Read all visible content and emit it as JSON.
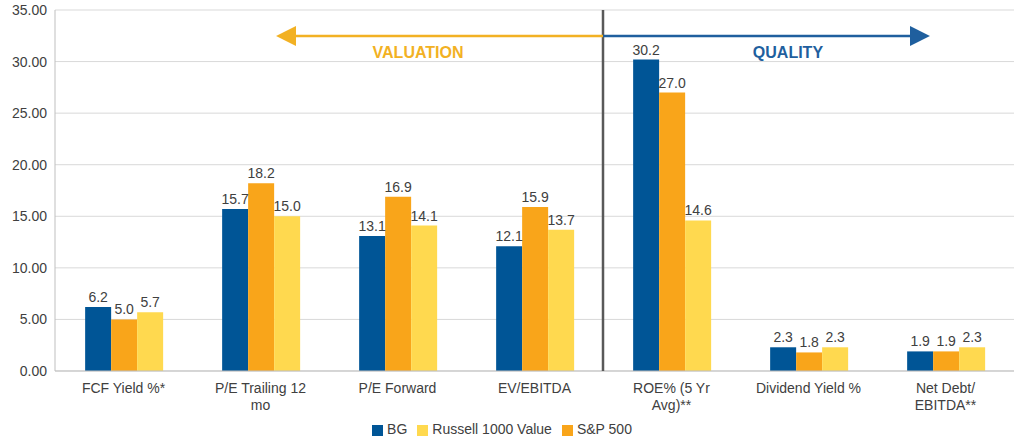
{
  "chart_data": {
    "type": "bar",
    "categories": [
      "FCF Yield %*",
      "P/E Trailing 12 mo",
      "P/E Forward",
      "EV/EBITDA",
      "ROE% (5 Yr Avg)**",
      "Dividend Yield %",
      "Net Debt/ EBITDA**"
    ],
    "series": [
      {
        "name": "BG",
        "color": "#005596",
        "values": [
          6.2,
          15.7,
          13.1,
          12.1,
          30.2,
          2.3,
          1.9
        ],
        "value_labels": [
          "6.2",
          "15.7",
          "13.1",
          "12.1",
          "30.2",
          "2.3",
          "1.9"
        ]
      },
      {
        "name": "S&P 500",
        "color": "#F9A51A",
        "values": [
          5.0,
          18.2,
          16.9,
          15.9,
          27.0,
          1.8,
          1.9
        ],
        "value_labels": [
          "5.0",
          "18.2",
          "16.9",
          "15.9",
          "27.0",
          "1.8",
          "1.9"
        ]
      },
      {
        "name": "Russell 1000 Value",
        "color": "#FFD94F",
        "values": [
          5.7,
          15.0,
          14.1,
          13.7,
          14.6,
          2.3,
          2.3
        ],
        "value_labels": [
          "5.7",
          "15.0",
          "14.1",
          "13.7",
          "14.6",
          "2.3",
          "2.3"
        ]
      }
    ],
    "ylim": [
      0,
      35
    ],
    "yticks": [
      {
        "value": 0,
        "label": "0.00"
      },
      {
        "value": 5,
        "label": "5.00"
      },
      {
        "value": 10,
        "label": "10.00"
      },
      {
        "value": 15,
        "label": "15.00"
      },
      {
        "value": 20,
        "label": "20.00"
      },
      {
        "value": 25,
        "label": "25.00"
      },
      {
        "value": 30,
        "label": "30.00"
      },
      {
        "value": 35,
        "label": "35.00"
      }
    ],
    "grid": true,
    "legend": "bottom",
    "data_labels": true,
    "annotations": [
      {
        "text": "VALUATION",
        "color": "#F2B123"
      },
      {
        "text": "QUALITY",
        "color": "#1F5F9E"
      }
    ]
  }
}
